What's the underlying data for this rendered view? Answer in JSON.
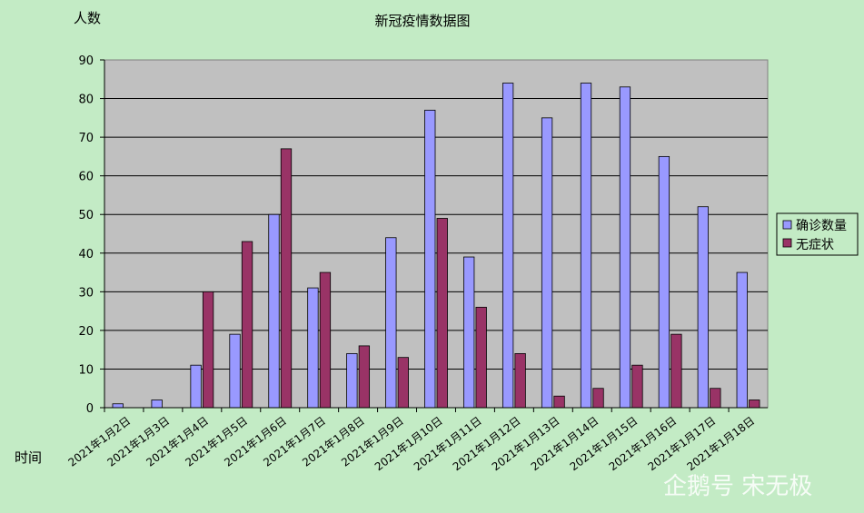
{
  "chart_data": {
    "type": "bar",
    "title": "新冠疫情数据图",
    "ylabel": "人数",
    "xlabel": "时间",
    "ylim": [
      0,
      90
    ],
    "yticks": [
      0,
      10,
      20,
      30,
      40,
      50,
      60,
      70,
      80,
      90
    ],
    "grid": true,
    "legend_position": "right",
    "categories": [
      "2021年1月2日",
      "2021年1月3日",
      "2021年1月4日",
      "2021年1月5日",
      "2021年1月6日",
      "2021年1月7日",
      "2021年1月8日",
      "2021年1月9日",
      "2021年1月10日",
      "2021年1月11日",
      "2021年1月12日",
      "2021年1月13日",
      "2021年1月14日",
      "2021年1月15日",
      "2021年1月16日",
      "2021年1月17日",
      "2021年1月18日"
    ],
    "series": [
      {
        "name": "确诊数量",
        "color": "#9999ff",
        "values": [
          1,
          2,
          11,
          19,
          50,
          31,
          14,
          44,
          77,
          39,
          84,
          75,
          84,
          83,
          65,
          52,
          35
        ]
      },
      {
        "name": "无症状",
        "color": "#993366",
        "values": [
          0,
          0,
          30,
          43,
          67,
          35,
          16,
          13,
          49,
          26,
          14,
          3,
          5,
          11,
          19,
          5,
          2
        ]
      }
    ]
  },
  "watermark": "企鹅号 宋无极",
  "colors": {
    "plot_bg": "#c0c0c0",
    "page_bg": "#c3ebc5",
    "grid": "#000000"
  }
}
